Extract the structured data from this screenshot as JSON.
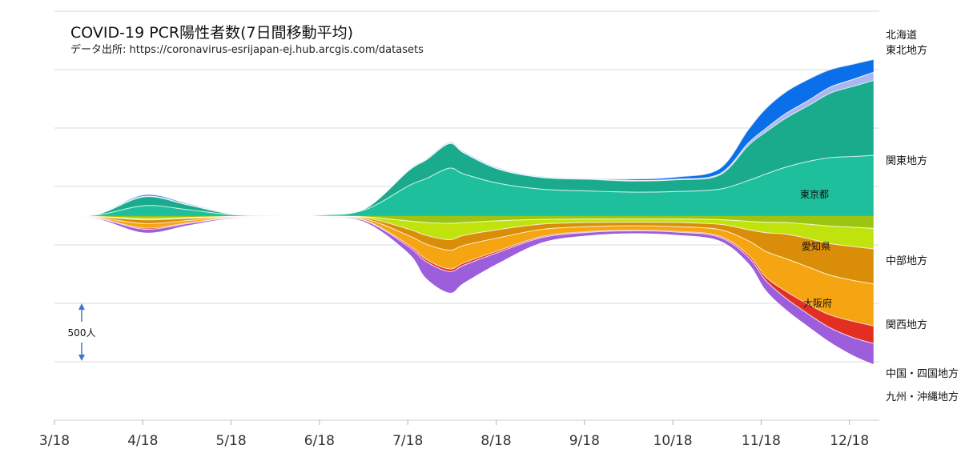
{
  "chart_data": {
    "type": "area",
    "title": "COVID-19 PCR陽性者数(7日間移動平均)",
    "subtitle": "データ出所: https://coronavirus-esrijapan-ej.hub.arcgis.com/datasets",
    "x_ticks": [
      "3/18",
      "4/18",
      "5/18",
      "6/18",
      "7/18",
      "8/18",
      "9/18",
      "10/18",
      "11/18",
      "12/18"
    ],
    "scale_annotation": "500人",
    "x": [
      "3/18",
      "4/2",
      "4/18",
      "5/3",
      "5/18",
      "6/2",
      "6/18",
      "7/3",
      "7/18",
      "7/24",
      "8/1",
      "8/6",
      "8/18",
      "9/2",
      "9/18",
      "10/3",
      "10/18",
      "11/2",
      "11/12",
      "11/18",
      "11/25",
      "12/3",
      "12/10",
      "12/18",
      "12/25"
    ],
    "series": [
      {
        "name": "北海道",
        "color": "#0a6fe8",
        "values": [
          0,
          1,
          12,
          8,
          2,
          0,
          0,
          0,
          4,
          5,
          6,
          7,
          6,
          4,
          4,
          12,
          18,
          45,
          115,
          170,
          185,
          180,
          150,
          130,
          110
        ]
      },
      {
        "name": "東北地方",
        "color": "#a9b6f2",
        "values": [
          0,
          0,
          5,
          3,
          0,
          0,
          0,
          0,
          3,
          4,
          5,
          5,
          4,
          3,
          3,
          5,
          6,
          10,
          22,
          30,
          40,
          45,
          52,
          60,
          70
        ]
      },
      {
        "name": "関東地方",
        "color": "#1aaa8c",
        "values": [
          0,
          8,
          75,
          40,
          6,
          2,
          2,
          10,
          130,
          160,
          210,
          180,
          120,
          100,
          100,
          95,
          100,
          120,
          300,
          360,
          420,
          480,
          550,
          600,
          640
        ]
      },
      {
        "name": "東京都",
        "color": "#1dbf9c",
        "values": [
          0,
          10,
          90,
          55,
          12,
          6,
          10,
          55,
          260,
          320,
          410,
          360,
          280,
          230,
          215,
          205,
          210,
          230,
          305,
          360,
          420,
          470,
          500,
          510,
          520
        ]
      },
      {
        "name": "中部地方",
        "color": "#9cc411",
        "values": [
          0,
          4,
          20,
          12,
          3,
          1,
          1,
          6,
          42,
          55,
          62,
          55,
          40,
          28,
          25,
          24,
          25,
          30,
          45,
          52,
          55,
          70,
          85,
          95,
          105
        ]
      },
      {
        "name": "愛知県",
        "color": "#c0e30e",
        "values": [
          0,
          3,
          12,
          8,
          2,
          1,
          1,
          8,
          70,
          110,
          140,
          110,
          75,
          40,
          30,
          28,
          30,
          40,
          72,
          90,
          100,
          125,
          150,
          165,
          175
        ]
      },
      {
        "name": "関西地方",
        "color": "#d98d09",
        "values": [
          0,
          6,
          32,
          18,
          4,
          1,
          2,
          10,
          55,
          75,
          90,
          85,
          70,
          45,
          35,
          30,
          35,
          45,
          95,
          160,
          210,
          245,
          270,
          290,
          300
        ]
      },
      {
        "name": "大阪府",
        "color": "#f5a412",
        "values": [
          0,
          6,
          38,
          20,
          4,
          1,
          2,
          14,
          80,
          130,
          160,
          150,
          110,
          60,
          42,
          38,
          40,
          55,
          120,
          220,
          280,
          320,
          340,
          350,
          360
        ]
      },
      {
        "name": "中国・四国地方",
        "color": "#e32f21",
        "values": [
          0,
          1,
          10,
          5,
          1,
          0,
          0,
          2,
          15,
          20,
          22,
          20,
          14,
          10,
          7,
          6,
          7,
          10,
          20,
          30,
          60,
          85,
          110,
          140,
          150
        ]
      },
      {
        "name": "九州・沖縄地方",
        "color": "#9c5edb",
        "values": [
          0,
          3,
          28,
          14,
          3,
          1,
          1,
          10,
          55,
          140,
          180,
          150,
          90,
          40,
          25,
          20,
          22,
          28,
          50,
          80,
          95,
          105,
          120,
          150,
          175
        ]
      }
    ],
    "region_labels": [
      "北海道",
      "東北地方",
      "関東地方",
      "中部地方",
      "関西地方",
      "中国・四国地方",
      "九州・沖縄地方"
    ],
    "inner_labels": [
      "東京都",
      "愛知県",
      "大阪府"
    ]
  }
}
